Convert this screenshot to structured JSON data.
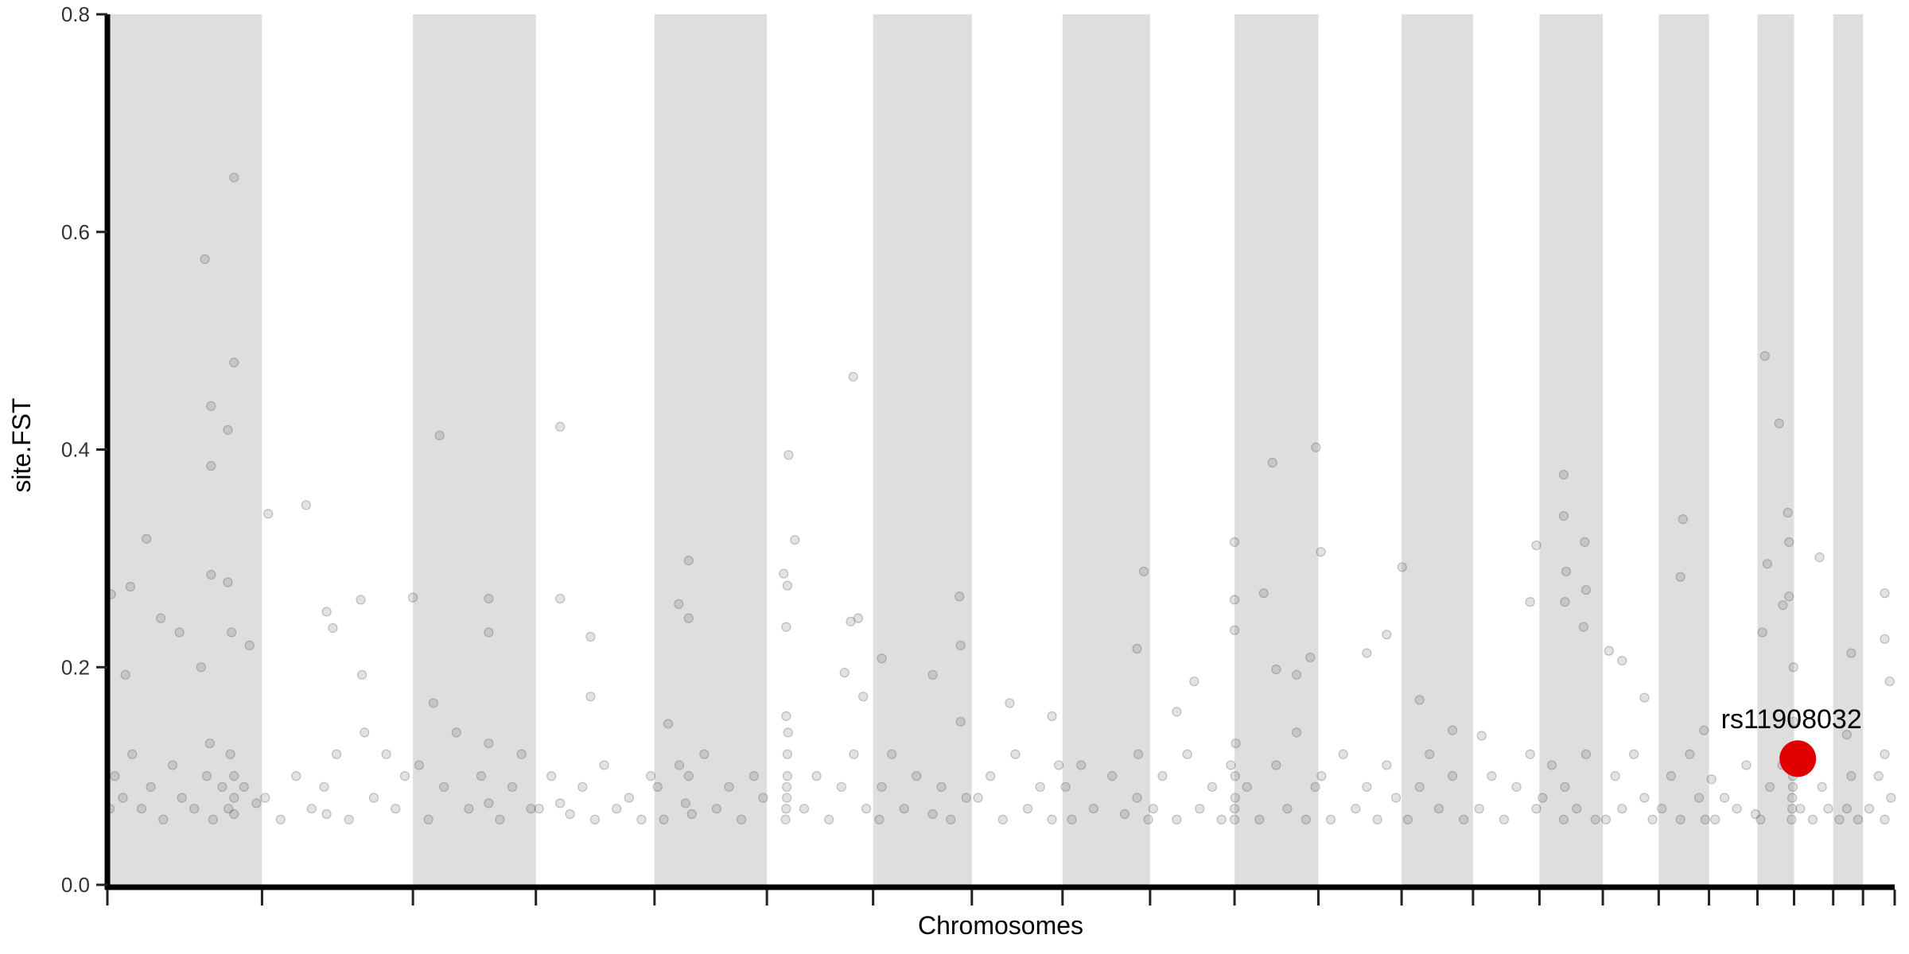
{
  "chart_data": {
    "type": "scatter",
    "title": "",
    "xlabel": "Chromosomes",
    "ylabel": "site.FST",
    "ylim": [
      0,
      0.8
    ],
    "yticks": [
      "0.0",
      "0.2",
      "0.4",
      "0.6",
      "0.8"
    ],
    "x_tick_labels_shown": false,
    "grid": false,
    "alternating_bands": "odd chromosomes shaded",
    "colors": {
      "band": "#dedede",
      "point": "#555555",
      "highlight": "#e00000",
      "axis": "#000000"
    },
    "chromosomes": [
      {
        "chr": 1,
        "length_mb": 249
      },
      {
        "chr": 2,
        "length_mb": 243
      },
      {
        "chr": 3,
        "length_mb": 198
      },
      {
        "chr": 4,
        "length_mb": 191
      },
      {
        "chr": 5,
        "length_mb": 181
      },
      {
        "chr": 6,
        "length_mb": 171
      },
      {
        "chr": 7,
        "length_mb": 159
      },
      {
        "chr": 8,
        "length_mb": 146
      },
      {
        "chr": 9,
        "length_mb": 141
      },
      {
        "chr": 10,
        "length_mb": 136
      },
      {
        "chr": 11,
        "length_mb": 135
      },
      {
        "chr": 12,
        "length_mb": 134
      },
      {
        "chr": 13,
        "length_mb": 115
      },
      {
        "chr": 14,
        "length_mb": 107
      },
      {
        "chr": 15,
        "length_mb": 102
      },
      {
        "chr": 16,
        "length_mb": 90
      },
      {
        "chr": 17,
        "length_mb": 81
      },
      {
        "chr": 18,
        "length_mb": 78
      },
      {
        "chr": 19,
        "length_mb": 59
      },
      {
        "chr": 20,
        "length_mb": 63
      },
      {
        "chr": 21,
        "length_mb": 48
      },
      {
        "chr": 22,
        "length_mb": 51
      }
    ],
    "point_fields": [
      "chr",
      "pos_mb",
      "fst"
    ],
    "points": [
      [
        1,
        204,
        0.65
      ],
      [
        1,
        157,
        0.575
      ],
      [
        1,
        167,
        0.44
      ],
      [
        1,
        204,
        0.48
      ],
      [
        1,
        167,
        0.385
      ],
      [
        1,
        194,
        0.418
      ],
      [
        1,
        167,
        0.285
      ],
      [
        1,
        194,
        0.278
      ],
      [
        1,
        63,
        0.318
      ],
      [
        1,
        37,
        0.274
      ],
      [
        1,
        6,
        0.267
      ],
      [
        1,
        86,
        0.245
      ],
      [
        1,
        116,
        0.232
      ],
      [
        1,
        29,
        0.193
      ],
      [
        1,
        151,
        0.2
      ],
      [
        1,
        200,
        0.232
      ],
      [
        1,
        229,
        0.22
      ],
      [
        1,
        4,
        0.07
      ],
      [
        1,
        12,
        0.1
      ],
      [
        1,
        25,
        0.08
      ],
      [
        1,
        40,
        0.12
      ],
      [
        1,
        55,
        0.07
      ],
      [
        1,
        70,
        0.09
      ],
      [
        1,
        90,
        0.06
      ],
      [
        1,
        105,
        0.11
      ],
      [
        1,
        120,
        0.08
      ],
      [
        1,
        140,
        0.07
      ],
      [
        1,
        160,
        0.1
      ],
      [
        1,
        165,
        0.13
      ],
      [
        1,
        170,
        0.06
      ],
      [
        1,
        185,
        0.09
      ],
      [
        1,
        195,
        0.07
      ],
      [
        1,
        198,
        0.12
      ],
      [
        1,
        204,
        0.08
      ],
      [
        1,
        204,
        0.1
      ],
      [
        1,
        204,
        0.065
      ],
      [
        1,
        220,
        0.09
      ],
      [
        1,
        240,
        0.075
      ],
      [
        2,
        10,
        0.341
      ],
      [
        2,
        71,
        0.349
      ],
      [
        2,
        104,
        0.251
      ],
      [
        2,
        159,
        0.262
      ],
      [
        2,
        114,
        0.236
      ],
      [
        2,
        161,
        0.193
      ],
      [
        2,
        5,
        0.08
      ],
      [
        2,
        30,
        0.06
      ],
      [
        2,
        55,
        0.1
      ],
      [
        2,
        80,
        0.07
      ],
      [
        2,
        100,
        0.09
      ],
      [
        2,
        104,
        0.065
      ],
      [
        2,
        120,
        0.12
      ],
      [
        2,
        140,
        0.06
      ],
      [
        2,
        165,
        0.14
      ],
      [
        2,
        180,
        0.08
      ],
      [
        2,
        200,
        0.12
      ],
      [
        2,
        215,
        0.07
      ],
      [
        2,
        230,
        0.1
      ],
      [
        3,
        0,
        0.264
      ],
      [
        3,
        43,
        0.413
      ],
      [
        3,
        122,
        0.263
      ],
      [
        3,
        122,
        0.232
      ],
      [
        3,
        33,
        0.167
      ],
      [
        3,
        10,
        0.11
      ],
      [
        3,
        25,
        0.06
      ],
      [
        3,
        50,
        0.09
      ],
      [
        3,
        70,
        0.14
      ],
      [
        3,
        90,
        0.07
      ],
      [
        3,
        110,
        0.1
      ],
      [
        3,
        122,
        0.13
      ],
      [
        3,
        122,
        0.075
      ],
      [
        3,
        140,
        0.06
      ],
      [
        3,
        160,
        0.09
      ],
      [
        3,
        175,
        0.12
      ],
      [
        3,
        190,
        0.07
      ],
      [
        4,
        39,
        0.421
      ],
      [
        4,
        39,
        0.263
      ],
      [
        4,
        88,
        0.228
      ],
      [
        4,
        88,
        0.173
      ],
      [
        4,
        5,
        0.07
      ],
      [
        4,
        25,
        0.1
      ],
      [
        4,
        39,
        0.075
      ],
      [
        4,
        55,
        0.065
      ],
      [
        4,
        75,
        0.09
      ],
      [
        4,
        95,
        0.06
      ],
      [
        4,
        110,
        0.11
      ],
      [
        4,
        130,
        0.07
      ],
      [
        4,
        150,
        0.08
      ],
      [
        4,
        170,
        0.06
      ],
      [
        4,
        185,
        0.1
      ],
      [
        5,
        55,
        0.298
      ],
      [
        5,
        39,
        0.258
      ],
      [
        5,
        55,
        0.245
      ],
      [
        5,
        22,
        0.148
      ],
      [
        5,
        5,
        0.09
      ],
      [
        5,
        15,
        0.06
      ],
      [
        5,
        40,
        0.11
      ],
      [
        5,
        50,
        0.075
      ],
      [
        5,
        55,
        0.1
      ],
      [
        5,
        60,
        0.065
      ],
      [
        5,
        80,
        0.12
      ],
      [
        5,
        100,
        0.07
      ],
      [
        5,
        120,
        0.09
      ],
      [
        5,
        140,
        0.06
      ],
      [
        5,
        160,
        0.1
      ],
      [
        5,
        175,
        0.08
      ],
      [
        6,
        35,
        0.395
      ],
      [
        6,
        45,
        0.317
      ],
      [
        6,
        27,
        0.286
      ],
      [
        6,
        33,
        0.275
      ],
      [
        6,
        31,
        0.237
      ],
      [
        6,
        139,
        0.467
      ],
      [
        6,
        147,
        0.245
      ],
      [
        6,
        135,
        0.242
      ],
      [
        6,
        125,
        0.195
      ],
      [
        6,
        155,
        0.173
      ],
      [
        6,
        30,
        0.06
      ],
      [
        6,
        31,
        0.07
      ],
      [
        6,
        32,
        0.08
      ],
      [
        6,
        32,
        0.09
      ],
      [
        6,
        33,
        0.1
      ],
      [
        6,
        33,
        0.12
      ],
      [
        6,
        34,
        0.14
      ],
      [
        6,
        31,
        0.155
      ],
      [
        6,
        60,
        0.07
      ],
      [
        6,
        80,
        0.1
      ],
      [
        6,
        100,
        0.06
      ],
      [
        6,
        120,
        0.09
      ],
      [
        6,
        140,
        0.12
      ],
      [
        6,
        160,
        0.07
      ],
      [
        7,
        14,
        0.208
      ],
      [
        7,
        96,
        0.193
      ],
      [
        7,
        139,
        0.265
      ],
      [
        7,
        141,
        0.22
      ],
      [
        7,
        10,
        0.06
      ],
      [
        7,
        14,
        0.09
      ],
      [
        7,
        30,
        0.12
      ],
      [
        7,
        50,
        0.07
      ],
      [
        7,
        70,
        0.1
      ],
      [
        7,
        96,
        0.065
      ],
      [
        7,
        110,
        0.09
      ],
      [
        7,
        125,
        0.06
      ],
      [
        7,
        141,
        0.15
      ],
      [
        7,
        150,
        0.08
      ],
      [
        8,
        61,
        0.167
      ],
      [
        8,
        129,
        0.155
      ],
      [
        8,
        10,
        0.08
      ],
      [
        8,
        30,
        0.1
      ],
      [
        8,
        50,
        0.06
      ],
      [
        8,
        70,
        0.12
      ],
      [
        8,
        90,
        0.07
      ],
      [
        8,
        110,
        0.09
      ],
      [
        8,
        129,
        0.06
      ],
      [
        8,
        140,
        0.11
      ],
      [
        9,
        131,
        0.288
      ],
      [
        9,
        120,
        0.217
      ],
      [
        9,
        5,
        0.09
      ],
      [
        9,
        15,
        0.06
      ],
      [
        9,
        30,
        0.11
      ],
      [
        9,
        50,
        0.07
      ],
      [
        9,
        80,
        0.1
      ],
      [
        9,
        100,
        0.065
      ],
      [
        9,
        120,
        0.08
      ],
      [
        9,
        122,
        0.12
      ],
      [
        9,
        138,
        0.06
      ],
      [
        10,
        43,
        0.159
      ],
      [
        10,
        71,
        0.187
      ],
      [
        10,
        5,
        0.07
      ],
      [
        10,
        20,
        0.1
      ],
      [
        10,
        43,
        0.06
      ],
      [
        10,
        60,
        0.12
      ],
      [
        10,
        80,
        0.07
      ],
      [
        10,
        100,
        0.09
      ],
      [
        10,
        115,
        0.06
      ],
      [
        10,
        130,
        0.11
      ],
      [
        11,
        0,
        0.315
      ],
      [
        11,
        0,
        0.262
      ],
      [
        11,
        0,
        0.234
      ],
      [
        11,
        61,
        0.388
      ],
      [
        11,
        131,
        0.402
      ],
      [
        11,
        139,
        0.306
      ],
      [
        11,
        47,
        0.268
      ],
      [
        11,
        67,
        0.198
      ],
      [
        11,
        100,
        0.193
      ],
      [
        11,
        122,
        0.209
      ],
      [
        11,
        0,
        0.06
      ],
      [
        11,
        0,
        0.07
      ],
      [
        11,
        1,
        0.08
      ],
      [
        11,
        1,
        0.1
      ],
      [
        11,
        2,
        0.13
      ],
      [
        11,
        20,
        0.09
      ],
      [
        11,
        40,
        0.06
      ],
      [
        11,
        67,
        0.11
      ],
      [
        11,
        85,
        0.07
      ],
      [
        11,
        100,
        0.14
      ],
      [
        11,
        115,
        0.06
      ],
      [
        11,
        130,
        0.09
      ],
      [
        12,
        78,
        0.213
      ],
      [
        12,
        135,
        0.292
      ],
      [
        12,
        110,
        0.23
      ],
      [
        12,
        5,
        0.1
      ],
      [
        12,
        20,
        0.06
      ],
      [
        12,
        40,
        0.12
      ],
      [
        12,
        60,
        0.07
      ],
      [
        12,
        78,
        0.09
      ],
      [
        12,
        95,
        0.06
      ],
      [
        12,
        110,
        0.11
      ],
      [
        12,
        125,
        0.08
      ],
      [
        13,
        29,
        0.17
      ],
      [
        13,
        82,
        0.142
      ],
      [
        13,
        10,
        0.06
      ],
      [
        13,
        29,
        0.09
      ],
      [
        13,
        45,
        0.12
      ],
      [
        13,
        60,
        0.07
      ],
      [
        13,
        82,
        0.1
      ],
      [
        13,
        100,
        0.06
      ],
      [
        14,
        102,
        0.312
      ],
      [
        14,
        92,
        0.26
      ],
      [
        14,
        14,
        0.137
      ],
      [
        14,
        10,
        0.07
      ],
      [
        14,
        30,
        0.1
      ],
      [
        14,
        50,
        0.06
      ],
      [
        14,
        70,
        0.09
      ],
      [
        14,
        92,
        0.12
      ],
      [
        14,
        102,
        0.07
      ],
      [
        15,
        39,
        0.377
      ],
      [
        15,
        39,
        0.339
      ],
      [
        15,
        43,
        0.288
      ],
      [
        15,
        41,
        0.26
      ],
      [
        15,
        73,
        0.315
      ],
      [
        15,
        75,
        0.271
      ],
      [
        15,
        71,
        0.237
      ],
      [
        15,
        5,
        0.08
      ],
      [
        15,
        20,
        0.11
      ],
      [
        15,
        39,
        0.06
      ],
      [
        15,
        41,
        0.09
      ],
      [
        15,
        60,
        0.07
      ],
      [
        15,
        75,
        0.12
      ],
      [
        15,
        90,
        0.06
      ],
      [
        16,
        10,
        0.215
      ],
      [
        16,
        67,
        0.172
      ],
      [
        16,
        31,
        0.206
      ],
      [
        16,
        5,
        0.06
      ],
      [
        16,
        20,
        0.1
      ],
      [
        16,
        31,
        0.07
      ],
      [
        16,
        50,
        0.12
      ],
      [
        16,
        67,
        0.08
      ],
      [
        16,
        80,
        0.06
      ],
      [
        17,
        39,
        0.336
      ],
      [
        17,
        35,
        0.283
      ],
      [
        17,
        73,
        0.142
      ],
      [
        17,
        5,
        0.07
      ],
      [
        17,
        20,
        0.1
      ],
      [
        17,
        35,
        0.06
      ],
      [
        17,
        50,
        0.12
      ],
      [
        17,
        65,
        0.08
      ],
      [
        17,
        75,
        0.06
      ],
      [
        18,
        4,
        0.097
      ],
      [
        18,
        10,
        0.06
      ],
      [
        18,
        25,
        0.08
      ],
      [
        18,
        45,
        0.07
      ],
      [
        18,
        60,
        0.11
      ],
      [
        18,
        75,
        0.065
      ],
      [
        19,
        12,
        0.486
      ],
      [
        19,
        35,
        0.424
      ],
      [
        19,
        16,
        0.295
      ],
      [
        19,
        41,
        0.257
      ],
      [
        19,
        8,
        0.232
      ],
      [
        19,
        49,
        0.342
      ],
      [
        19,
        51,
        0.315
      ],
      [
        19,
        51,
        0.265
      ],
      [
        19,
        5,
        0.06
      ],
      [
        19,
        20,
        0.09
      ],
      [
        19,
        40,
        0.11
      ],
      [
        19,
        55,
        0.06
      ],
      [
        19,
        56,
        0.07
      ],
      [
        19,
        56,
        0.08
      ],
      [
        19,
        57,
        0.09
      ],
      [
        19,
        57,
        0.1
      ],
      [
        19,
        58,
        0.12
      ],
      [
        19,
        58,
        0.15
      ],
      [
        19,
        58,
        0.2
      ],
      [
        20,
        41,
        0.301
      ],
      [
        20,
        10,
        0.07
      ],
      [
        20,
        20,
        0.12
      ],
      [
        20,
        30,
        0.06
      ],
      [
        20,
        45,
        0.09
      ],
      [
        20,
        55,
        0.07
      ],
      [
        21,
        29,
        0.213
      ],
      [
        21,
        22,
        0.138
      ],
      [
        21,
        10,
        0.06
      ],
      [
        21,
        22,
        0.07
      ],
      [
        21,
        29,
        0.1
      ],
      [
        21,
        40,
        0.06
      ],
      [
        22,
        35,
        0.268
      ],
      [
        22,
        35,
        0.226
      ],
      [
        22,
        43,
        0.187
      ],
      [
        22,
        10,
        0.07
      ],
      [
        22,
        25,
        0.1
      ],
      [
        22,
        35,
        0.06
      ],
      [
        22,
        35,
        0.12
      ],
      [
        22,
        45,
        0.08
      ]
    ],
    "highlight": {
      "label": "rs11908032",
      "chr": 20,
      "pos_mb": 6,
      "fst": 0.116
    }
  }
}
